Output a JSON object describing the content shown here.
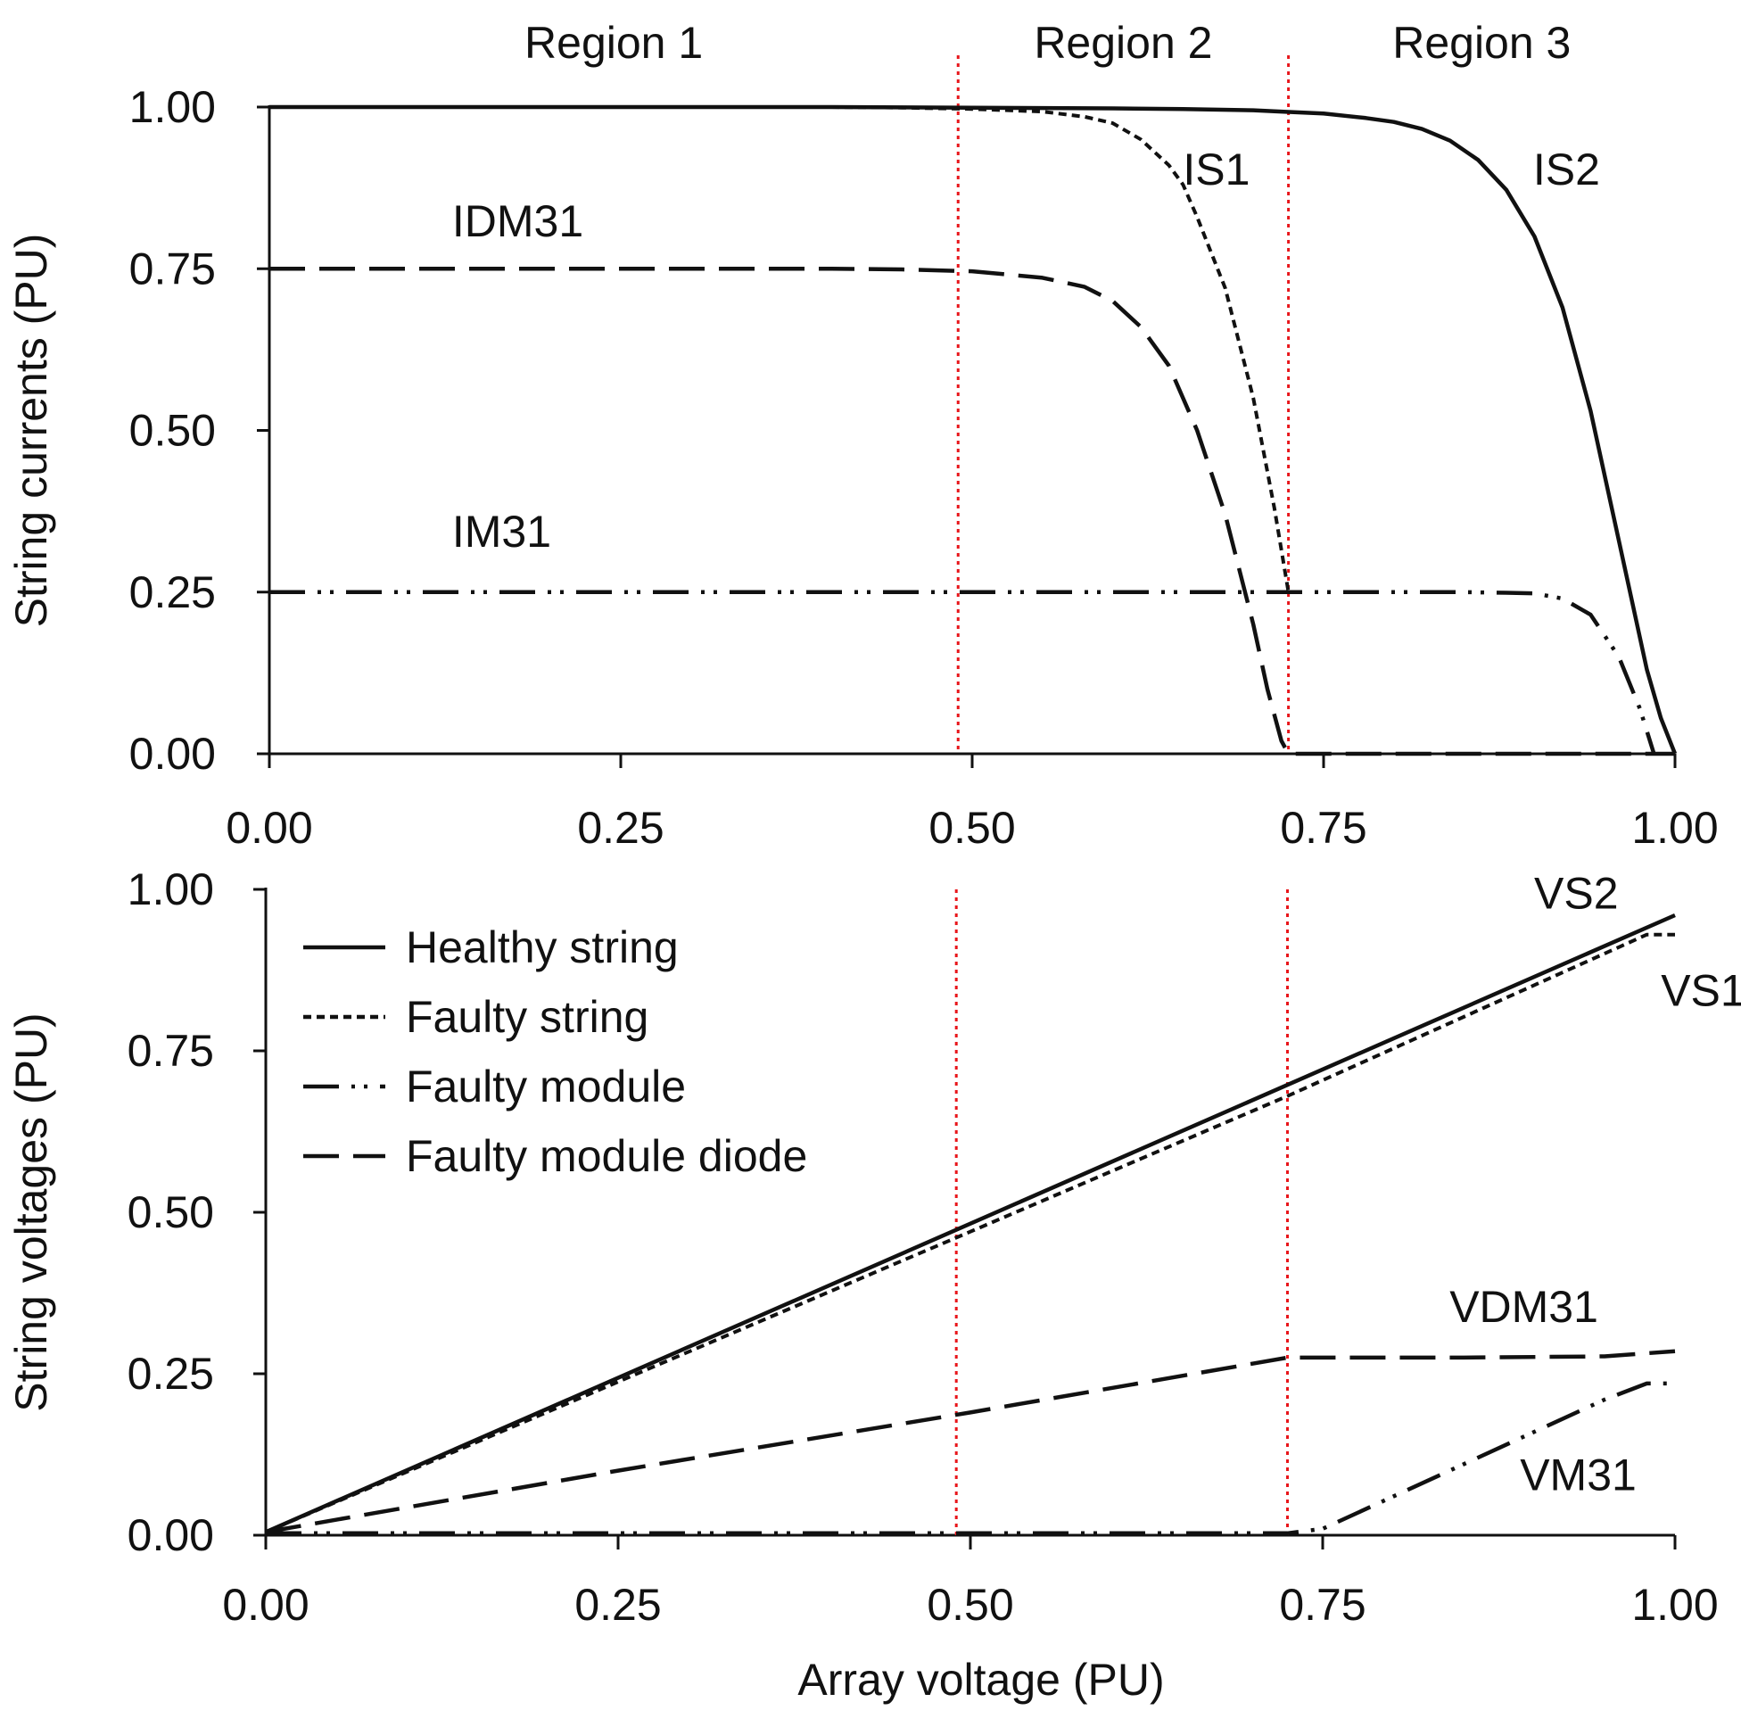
{
  "chart_data": [
    {
      "type": "line",
      "panel": "top",
      "title": "",
      "xlabel": "",
      "ylabel": "String currents (PU)",
      "xlim": [
        0,
        1
      ],
      "ylim": [
        0,
        1
      ],
      "xticks": [
        "0.00",
        "0.25",
        "0.50",
        "0.75",
        "1.00"
      ],
      "yticks": [
        "0.00",
        "0.25",
        "0.50",
        "0.75",
        "1.00"
      ],
      "grid": false,
      "regions": [
        {
          "label": "Region 1",
          "x_start": 0.0,
          "x_end": 0.49
        },
        {
          "label": "Region 2",
          "x_start": 0.49,
          "x_end": 0.725
        },
        {
          "label": "Region 3",
          "x_start": 0.725,
          "x_end": 1.0
        }
      ],
      "region_boundaries": [
        0.49,
        0.725
      ],
      "region_boundary_color": "#e8161b",
      "series": [
        {
          "name": "IS2",
          "legend": "Healthy string",
          "style": "solid",
          "x": [
            0,
            0.1,
            0.2,
            0.3,
            0.4,
            0.5,
            0.6,
            0.65,
            0.7,
            0.72,
            0.75,
            0.78,
            0.8,
            0.82,
            0.84,
            0.86,
            0.88,
            0.9,
            0.92,
            0.94,
            0.96,
            0.98,
            0.99,
            1.0
          ],
          "values": [
            1.0,
            1.0,
            1.0,
            1.0,
            1.0,
            0.999,
            0.998,
            0.997,
            0.995,
            0.993,
            0.99,
            0.983,
            0.977,
            0.966,
            0.948,
            0.918,
            0.872,
            0.8,
            0.69,
            0.53,
            0.33,
            0.13,
            0.055,
            0.0
          ]
        },
        {
          "name": "IS1",
          "legend": "Faulty string",
          "style": "dotted",
          "x": [
            0,
            0.1,
            0.2,
            0.3,
            0.4,
            0.45,
            0.5,
            0.55,
            0.58,
            0.6,
            0.62,
            0.64,
            0.65,
            0.66,
            0.68,
            0.7,
            0.715,
            0.725
          ],
          "values": [
            1.0,
            1.0,
            1.0,
            1.0,
            1.0,
            0.999,
            0.997,
            0.993,
            0.985,
            0.975,
            0.95,
            0.91,
            0.88,
            0.83,
            0.72,
            0.55,
            0.38,
            0.25
          ]
        },
        {
          "name": "IDM31",
          "legend": "Faulty module diode",
          "style": "dashed",
          "x": [
            0,
            0.1,
            0.2,
            0.3,
            0.4,
            0.45,
            0.5,
            0.55,
            0.58,
            0.6,
            0.62,
            0.64,
            0.66,
            0.68,
            0.7,
            0.71,
            0.72,
            0.725,
            0.8,
            0.9,
            1.0
          ],
          "values": [
            0.75,
            0.75,
            0.75,
            0.75,
            0.75,
            0.749,
            0.746,
            0.736,
            0.722,
            0.7,
            0.66,
            0.6,
            0.5,
            0.37,
            0.2,
            0.1,
            0.02,
            0.0,
            0.0,
            0.0,
            0.0
          ]
        },
        {
          "name": "IM31",
          "legend": "Faulty module",
          "style": "dash-dot-dot",
          "x": [
            0,
            0.1,
            0.2,
            0.3,
            0.4,
            0.5,
            0.6,
            0.7,
            0.725,
            0.8,
            0.85,
            0.88,
            0.9,
            0.92,
            0.94,
            0.96,
            0.975,
            0.985
          ],
          "values": [
            0.25,
            0.25,
            0.25,
            0.25,
            0.25,
            0.25,
            0.25,
            0.25,
            0.25,
            0.25,
            0.25,
            0.249,
            0.248,
            0.24,
            0.215,
            0.15,
            0.07,
            0.0
          ]
        }
      ],
      "annotations": [
        {
          "text": "IS2",
          "x": 0.88,
          "y": 0.88
        },
        {
          "text": "IS1",
          "x": 0.65,
          "y": 0.88
        },
        {
          "text": "IDM31",
          "x": 0.13,
          "y": 0.8
        },
        {
          "text": "IM31",
          "x": 0.13,
          "y": 0.32
        }
      ]
    },
    {
      "type": "line",
      "panel": "bottom",
      "title": "",
      "xlabel": "Array voltage (PU)",
      "ylabel": "String voltages (PU)",
      "xlim": [
        0,
        1
      ],
      "ylim": [
        0,
        1
      ],
      "xticks": [
        "0.00",
        "0.25",
        "0.50",
        "0.75",
        "1.00"
      ],
      "yticks": [
        "0.00",
        "0.25",
        "0.50",
        "0.75",
        "1.00"
      ],
      "grid": false,
      "legend_position": "top-left",
      "region_boundaries": [
        0.49,
        0.725
      ],
      "region_boundary_color": "#e8161b",
      "series": [
        {
          "name": "VS2",
          "legend": "Healthy string",
          "style": "solid",
          "x": [
            0,
            1.0
          ],
          "values": [
            0.005,
            0.96
          ]
        },
        {
          "name": "VS1",
          "legend": "Faulty string",
          "style": "dotted",
          "x": [
            0,
            0.5,
            0.725,
            0.98,
            1.0
          ],
          "values": [
            0.005,
            0.47,
            0.68,
            0.93,
            0.93
          ]
        },
        {
          "name": "VDM31",
          "legend": "Faulty module diode",
          "style": "dashed",
          "x": [
            0,
            0.25,
            0.5,
            0.725,
            0.85,
            0.95,
            1.0
          ],
          "values": [
            0.005,
            0.1,
            0.19,
            0.275,
            0.275,
            0.277,
            0.285
          ]
        },
        {
          "name": "VM31",
          "legend": "Faulty module",
          "style": "dash-dot-dot",
          "x": [
            0,
            0.25,
            0.5,
            0.725,
            0.75,
            0.85,
            0.95,
            0.98,
            1.0
          ],
          "values": [
            0.003,
            0.003,
            0.003,
            0.003,
            0.01,
            0.11,
            0.21,
            0.235,
            0.235
          ]
        }
      ],
      "annotations": [
        {
          "text": "VS2",
          "x": 0.9,
          "y": 0.97
        },
        {
          "text": "VS1",
          "x": 0.99,
          "y": 0.82
        },
        {
          "text": "VDM31",
          "x": 0.84,
          "y": 0.33
        },
        {
          "text": "VM31",
          "x": 0.89,
          "y": 0.07
        }
      ],
      "legend_entries": [
        {
          "label": "Healthy string",
          "style": "solid"
        },
        {
          "label": "Faulty string",
          "style": "dotted"
        },
        {
          "label": "Faulty module",
          "style": "dash-dot-dot"
        },
        {
          "label": "Faulty module diode",
          "style": "dashed"
        }
      ]
    }
  ],
  "colors": {
    "line": "#111111",
    "region_boundary": "#e8161b",
    "background": "#ffffff"
  }
}
